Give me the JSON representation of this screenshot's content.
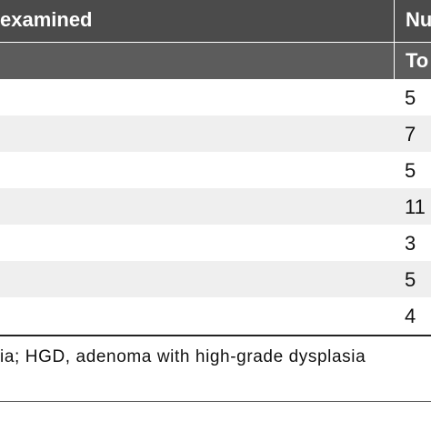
{
  "header": {
    "row1_left": "examined",
    "row1_right": "Nu",
    "row2_right": "To"
  },
  "rows": [
    {
      "value": "5"
    },
    {
      "value": "7"
    },
    {
      "value": "5"
    },
    {
      "value": "11"
    },
    {
      "value": "3"
    },
    {
      "value": "5"
    },
    {
      "value": "4"
    }
  ],
  "footnote": "ia; HGD, adenoma with high-grade dysplasia"
}
